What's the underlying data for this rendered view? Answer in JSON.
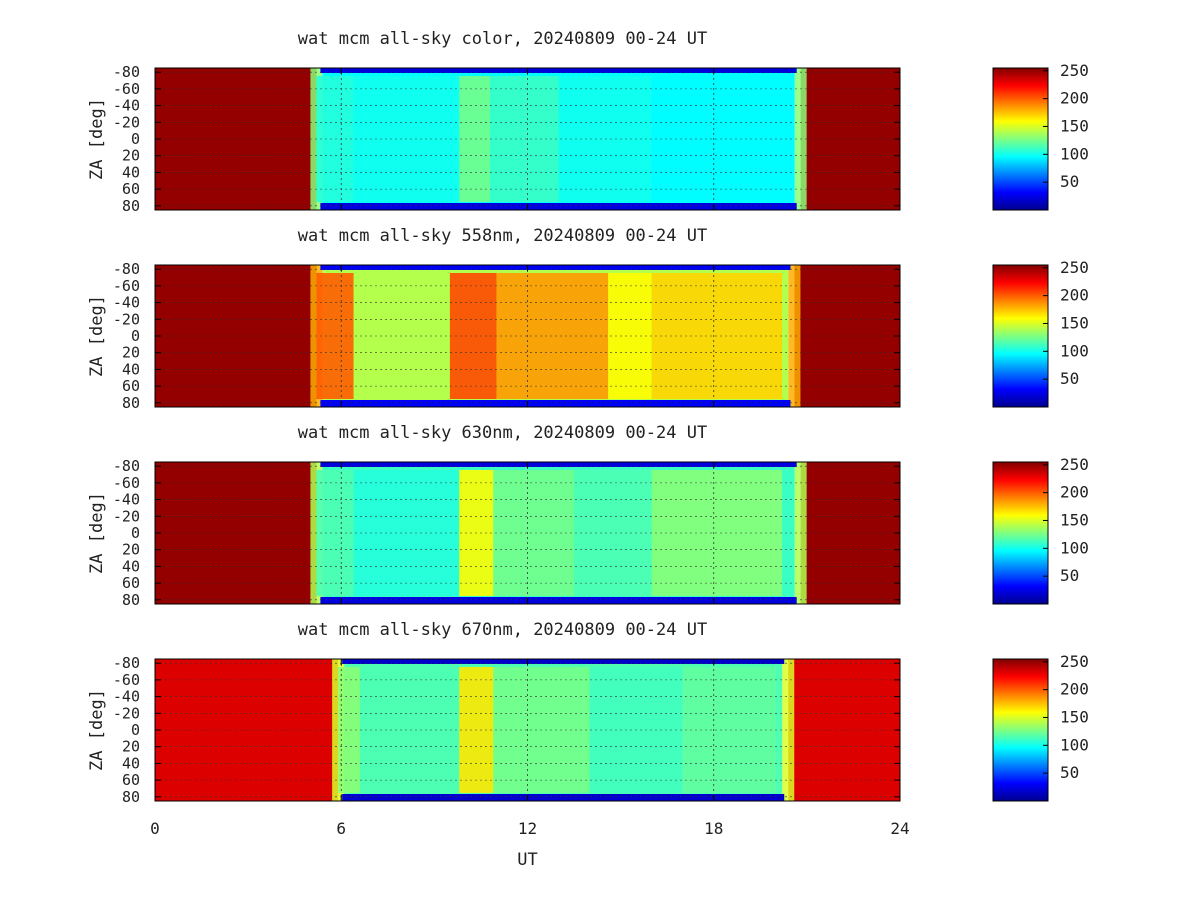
{
  "chart_data": [
    {
      "type": "heatmap",
      "title": "wat mcm all-sky color, 20240809 00-24 UT",
      "ylabel": "ZA [deg]",
      "xlabel": "",
      "x_ticks": [
        0,
        6,
        12,
        18,
        24
      ],
      "y_ticks": [
        -80,
        -60,
        -40,
        -20,
        0,
        20,
        40,
        60,
        80
      ],
      "y_tick_labels": [
        "-80",
        "-60",
        "-40",
        "-20",
        "0",
        "20",
        "40",
        "60",
        "80"
      ],
      "xlim": [
        0,
        24
      ],
      "ylim": [
        -85,
        85
      ],
      "colorbar_ticks": [
        50,
        100,
        150,
        200,
        250
      ],
      "colorbar_range": [
        0,
        255
      ],
      "grid": true,
      "night_start_ut": 5.2,
      "night_end_ut": 20.8,
      "saturated_value": 250,
      "twilight_value": 130,
      "background_value": 95,
      "segments": [
        {
          "x": [
            5.2,
            6.4
          ],
          "value": 105
        },
        {
          "x": [
            6.4,
            9.8
          ],
          "value": 100
        },
        {
          "x": [
            9.8,
            10.8
          ],
          "value": 125
        },
        {
          "x": [
            10.8,
            13.0
          ],
          "value": 110
        },
        {
          "x": [
            13.0,
            16.0
          ],
          "value": 100
        },
        {
          "x": [
            16.0,
            20.2
          ],
          "value": 95
        }
      ],
      "edge_value": 25
    },
    {
      "type": "heatmap",
      "title": "wat mcm all-sky 558nm, 20240809 00-24 UT",
      "ylabel": "ZA [deg]",
      "xlabel": "",
      "x_ticks": [
        0,
        6,
        12,
        18,
        24
      ],
      "y_ticks": [
        -80,
        -60,
        -40,
        -20,
        0,
        20,
        40,
        60,
        80
      ],
      "y_tick_labels": [
        "-80",
        "-60",
        "-40",
        "-20",
        "0",
        "20",
        "40",
        "60",
        "80"
      ],
      "xlim": [
        0,
        24
      ],
      "ylim": [
        -85,
        85
      ],
      "colorbar_ticks": [
        50,
        100,
        150,
        200,
        250
      ],
      "colorbar_range": [
        0,
        255
      ],
      "grid": true,
      "night_start_ut": 5.2,
      "night_end_ut": 20.6,
      "saturated_value": 250,
      "twilight_value": 180,
      "background_value": 140,
      "segments": [
        {
          "x": [
            5.2,
            6.4
          ],
          "value": 200
        },
        {
          "x": [
            6.4,
            9.5
          ],
          "value": 140
        },
        {
          "x": [
            9.5,
            11.0
          ],
          "value": 205
        },
        {
          "x": [
            11.0,
            14.6
          ],
          "value": 185
        },
        {
          "x": [
            14.6,
            16.0
          ],
          "value": 160
        },
        {
          "x": [
            16.0,
            20.2
          ],
          "value": 170
        }
      ],
      "edge_value": 30
    },
    {
      "type": "heatmap",
      "title": "wat mcm all-sky 630nm, 20240809 00-24 UT",
      "ylabel": "ZA [deg]",
      "xlabel": "",
      "x_ticks": [
        0,
        6,
        12,
        18,
        24
      ],
      "y_ticks": [
        -80,
        -60,
        -40,
        -20,
        0,
        20,
        40,
        60,
        80
      ],
      "y_tick_labels": [
        "-80",
        "-60",
        "-40",
        "-20",
        "0",
        "20",
        "40",
        "60",
        "80"
      ],
      "xlim": [
        0,
        24
      ],
      "ylim": [
        -85,
        85
      ],
      "colorbar_ticks": [
        50,
        100,
        150,
        200,
        250
      ],
      "colorbar_range": [
        0,
        255
      ],
      "grid": true,
      "night_start_ut": 5.2,
      "night_end_ut": 20.8,
      "saturated_value": 250,
      "twilight_value": 140,
      "background_value": 110,
      "segments": [
        {
          "x": [
            5.2,
            6.4
          ],
          "value": 115
        },
        {
          "x": [
            6.4,
            9.8
          ],
          "value": 105
        },
        {
          "x": [
            9.8,
            10.9
          ],
          "value": 160
        },
        {
          "x": [
            10.9,
            13.5
          ],
          "value": 125
        },
        {
          "x": [
            13.5,
            16.0
          ],
          "value": 115
        },
        {
          "x": [
            16.0,
            20.2
          ],
          "value": 130
        }
      ],
      "edge_value": 25
    },
    {
      "type": "heatmap",
      "title": "wat mcm all-sky 670nm, 20240809 00-24 UT",
      "ylabel": "ZA [deg]",
      "xlabel": "UT",
      "x_ticks": [
        0,
        6,
        12,
        18,
        24
      ],
      "y_ticks": [
        -80,
        -60,
        -40,
        -20,
        0,
        20,
        40,
        60,
        80
      ],
      "y_tick_labels": [
        "-80",
        "-60",
        "-40",
        "-20",
        "0",
        "20",
        "40",
        "60",
        "80"
      ],
      "xlim": [
        0,
        24
      ],
      "ylim": [
        -85,
        85
      ],
      "colorbar_ticks": [
        50,
        100,
        150,
        200,
        250
      ],
      "colorbar_range": [
        0,
        255
      ],
      "grid": true,
      "night_start_ut": 5.9,
      "night_end_ut": 20.4,
      "saturated_value": 232,
      "twilight_value": 150,
      "background_value": 115,
      "segments": [
        {
          "x": [
            5.9,
            6.6
          ],
          "value": 130
        },
        {
          "x": [
            6.6,
            9.8
          ],
          "value": 115
        },
        {
          "x": [
            9.8,
            10.9
          ],
          "value": 165
        },
        {
          "x": [
            10.9,
            14.0
          ],
          "value": 125
        },
        {
          "x": [
            14.0,
            17.0
          ],
          "value": 112
        },
        {
          "x": [
            17.0,
            20.0
          ],
          "value": 120
        }
      ],
      "edge_value": 20
    }
  ]
}
